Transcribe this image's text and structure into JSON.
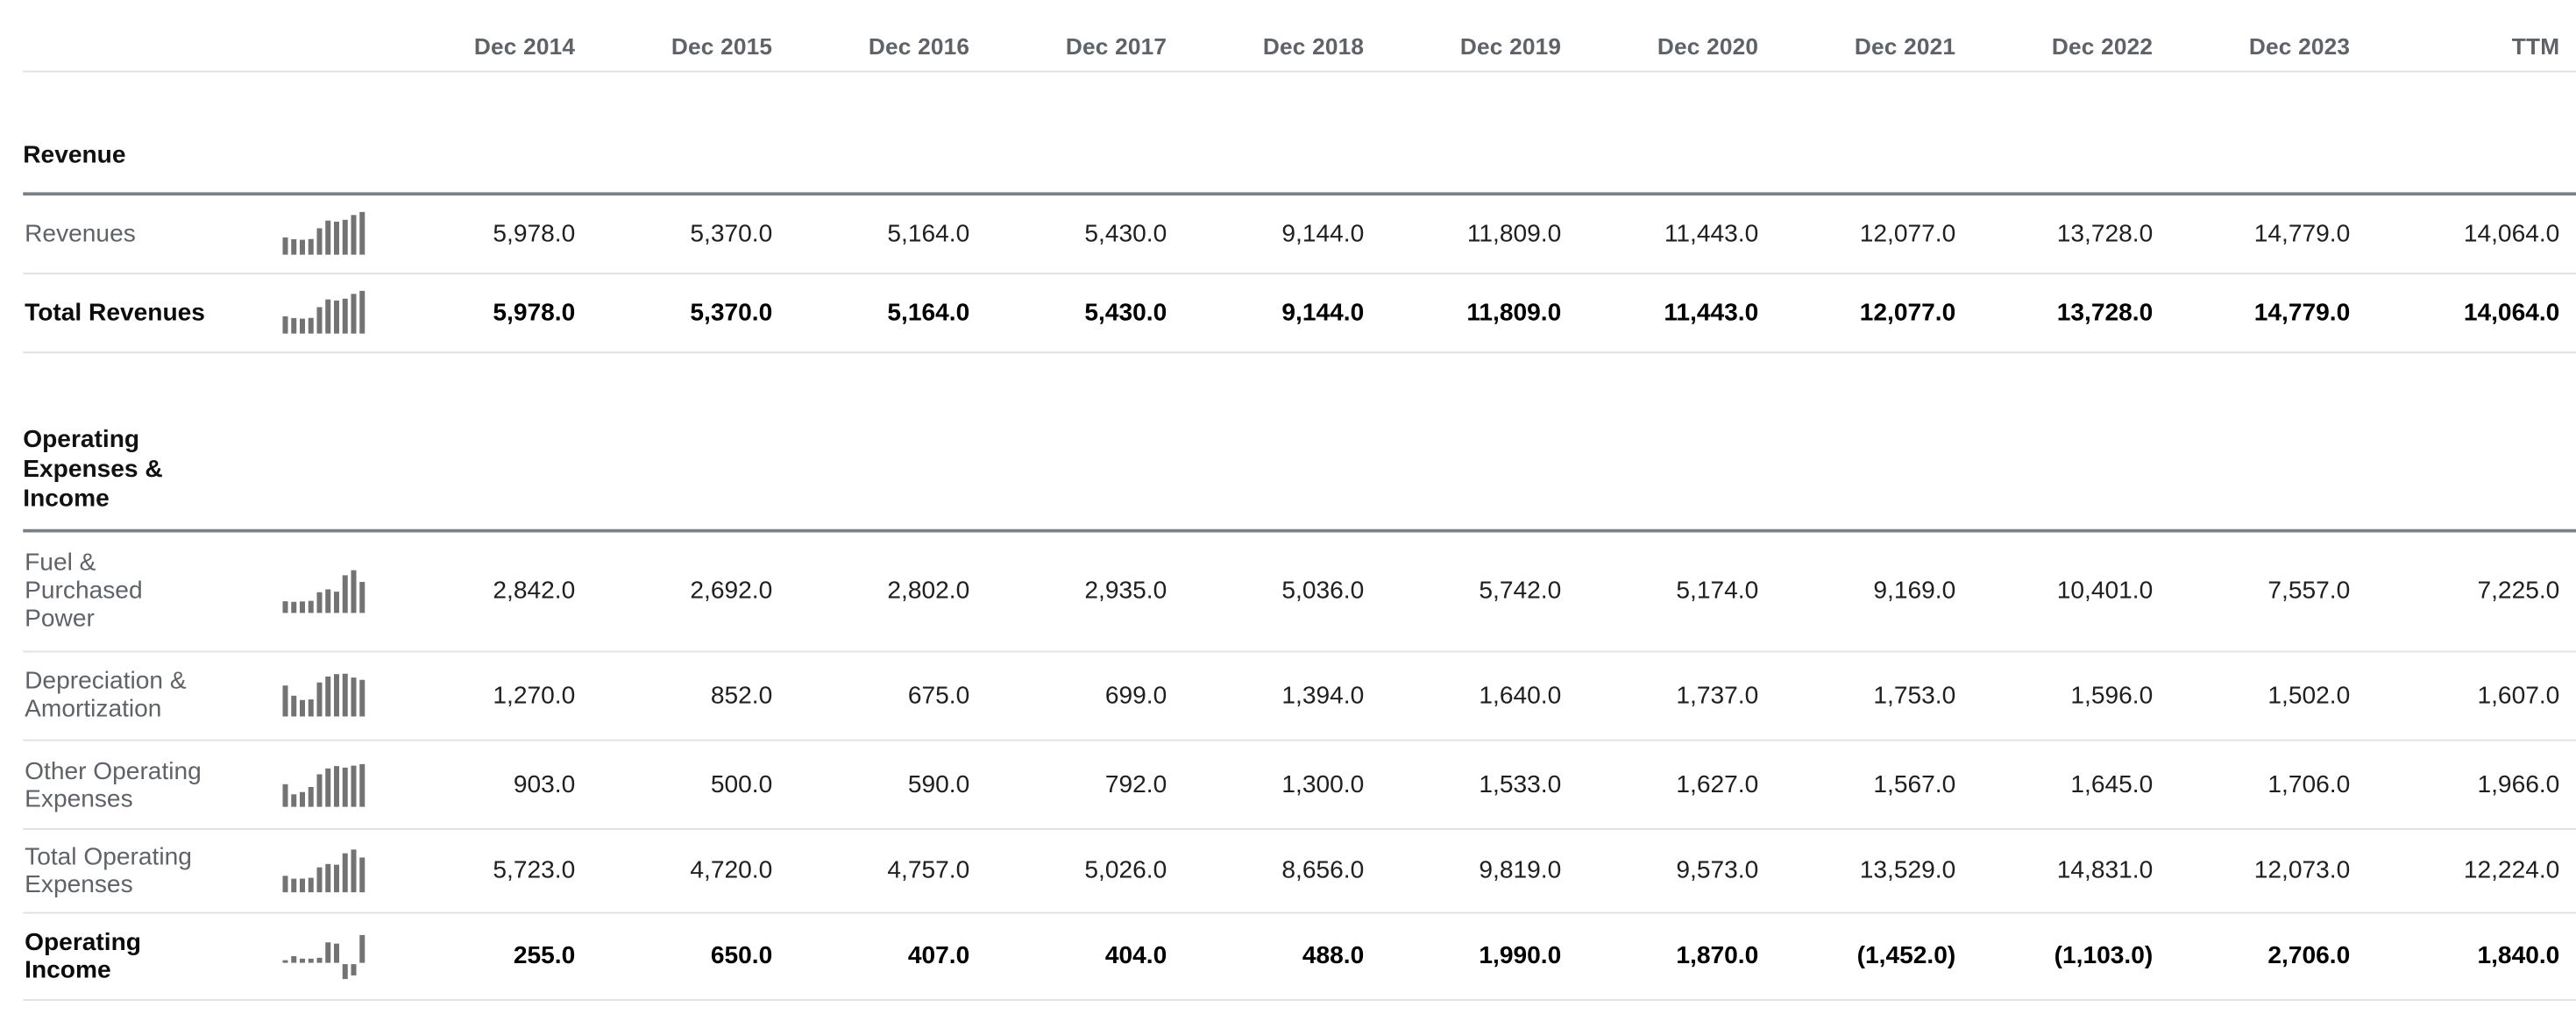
{
  "table": {
    "unit_note": "",
    "columns": [
      "Dec 2014",
      "Dec 2015",
      "Dec 2016",
      "Dec 2017",
      "Dec 2018",
      "Dec 2019",
      "Dec 2020",
      "Dec 2021",
      "Dec 2022",
      "Dec 2023",
      "TTM"
    ],
    "sections": [
      {
        "title": "Revenue",
        "rows": [
          {
            "label": "Revenues",
            "emphasis": false,
            "highlight": false,
            "values": [
              "5,978.0",
              "5,370.0",
              "5,164.0",
              "5,430.0",
              "9,144.0",
              "11,809.0",
              "11,443.0",
              "12,077.0",
              "13,728.0",
              "14,779.0",
              "14,064.0"
            ],
            "spark": [
              5978,
              5370,
              5164,
              5430,
              9144,
              11809,
              11443,
              12077,
              13728,
              14779
            ]
          },
          {
            "label": "Total Revenues",
            "emphasis": true,
            "highlight": true,
            "values": [
              "5,978.0",
              "5,370.0",
              "5,164.0",
              "5,430.0",
              "9,144.0",
              "11,809.0",
              "11,443.0",
              "12,077.0",
              "13,728.0",
              "14,779.0",
              "14,064.0"
            ],
            "spark": [
              5978,
              5370,
              5164,
              5430,
              9144,
              11809,
              11443,
              12077,
              13728,
              14779
            ]
          }
        ]
      },
      {
        "title": "Operating Expenses & Income",
        "rows": [
          {
            "label": "Fuel & Purchased Power",
            "emphasis": false,
            "highlight": false,
            "values": [
              "2,842.0",
              "2,692.0",
              "2,802.0",
              "2,935.0",
              "5,036.0",
              "5,742.0",
              "5,174.0",
              "9,169.0",
              "10,401.0",
              "7,557.0",
              "7,225.0"
            ],
            "spark": [
              2842,
              2692,
              2802,
              2935,
              5036,
              5742,
              5174,
              9169,
              10401,
              7557
            ]
          },
          {
            "label": "Depreciation & Amortization",
            "emphasis": false,
            "highlight": false,
            "values": [
              "1,270.0",
              "852.0",
              "675.0",
              "699.0",
              "1,394.0",
              "1,640.0",
              "1,737.0",
              "1,753.0",
              "1,596.0",
              "1,502.0",
              "1,607.0"
            ],
            "spark": [
              1270,
              852,
              675,
              699,
              1394,
              1640,
              1737,
              1753,
              1596,
              1502
            ]
          },
          {
            "label": "Other Operating Expenses",
            "emphasis": false,
            "highlight": false,
            "values": [
              "903.0",
              "500.0",
              "590.0",
              "792.0",
              "1,300.0",
              "1,533.0",
              "1,627.0",
              "1,567.0",
              "1,645.0",
              "1,706.0",
              "1,966.0"
            ],
            "spark": [
              903,
              500,
              590,
              792,
              1300,
              1533,
              1627,
              1567,
              1645,
              1706
            ]
          },
          {
            "label": "Total Operating Expenses",
            "emphasis": false,
            "highlight": false,
            "values": [
              "5,723.0",
              "4,720.0",
              "4,757.0",
              "5,026.0",
              "8,656.0",
              "9,819.0",
              "9,573.0",
              "13,529.0",
              "14,831.0",
              "12,073.0",
              "12,224.0"
            ],
            "spark": [
              5723,
              4720,
              4757,
              5026,
              8656,
              9819,
              9573,
              13529,
              14831,
              12073
            ]
          },
          {
            "label": "Operating Income",
            "emphasis": true,
            "highlight": true,
            "values": [
              "255.0",
              "650.0",
              "407.0",
              "404.0",
              "488.0",
              "1,990.0",
              "1,870.0",
              "(1,452.0)",
              "(1,103.0)",
              "2,706.0",
              "1,840.0"
            ],
            "spark": [
              255,
              650,
              407,
              404,
              488,
              1990,
              1870,
              -1452,
              -1103,
              2706
            ]
          }
        ]
      }
    ],
    "colors": {
      "highlight_row_bg": "#e4eef9",
      "spark_bar": "#737373",
      "header_text": "#5f6368",
      "label_text": "#5f6368",
      "value_text": "#1f1f1f",
      "emphasis_text": "#000000",
      "divider_light": "#e0e0e0",
      "divider_dark": "#7b8085"
    }
  }
}
